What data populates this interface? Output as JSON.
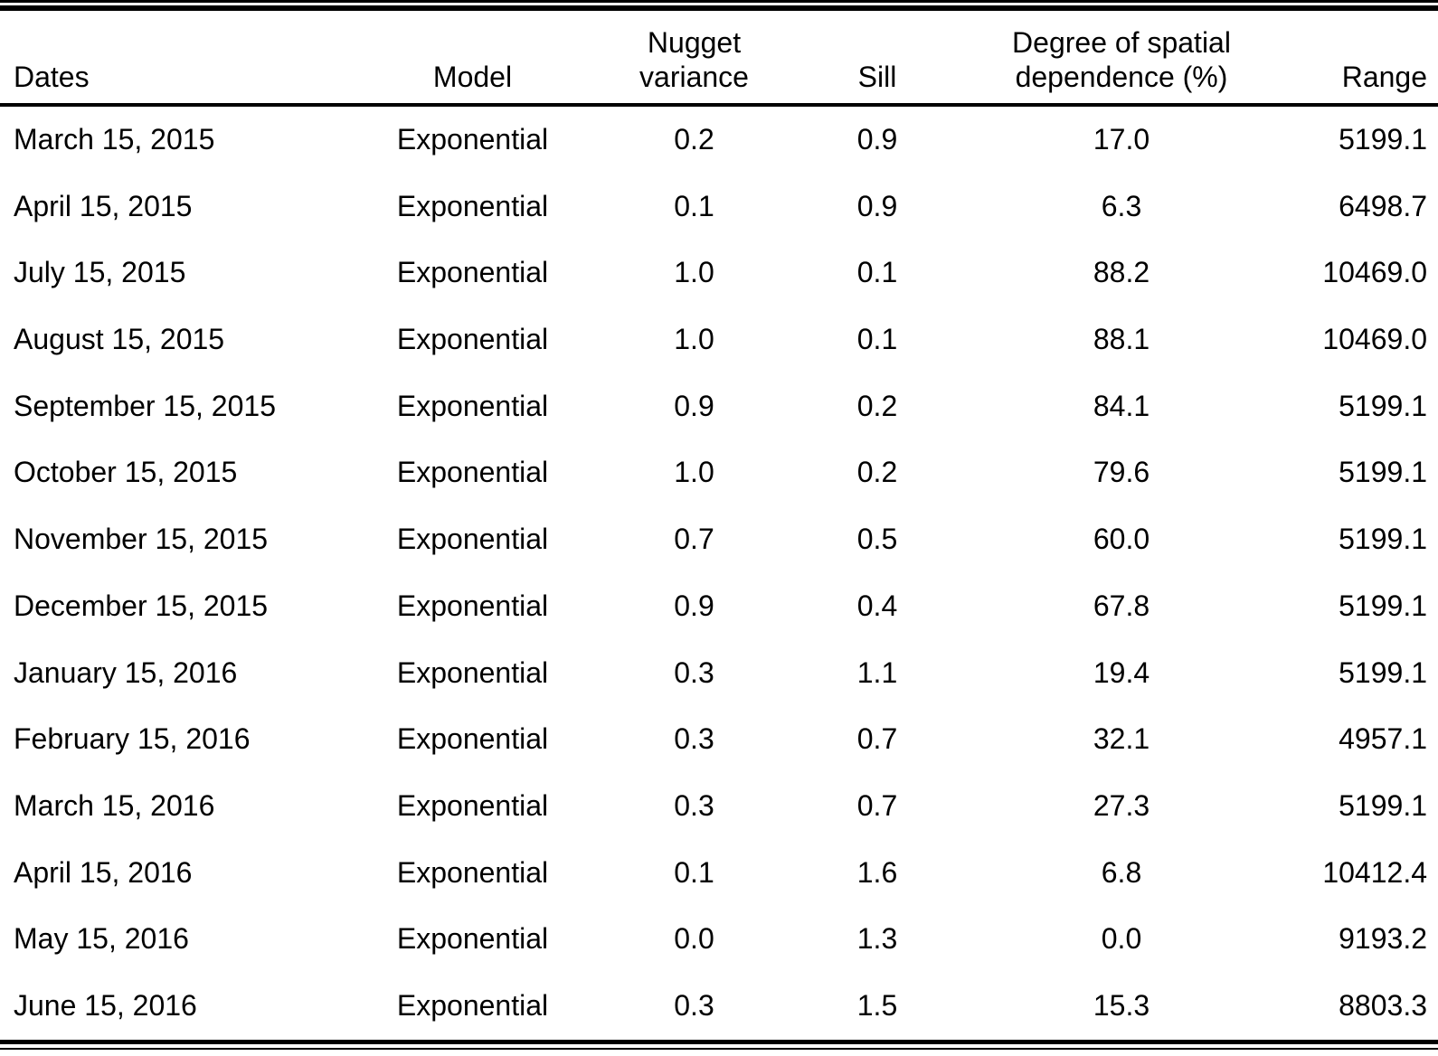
{
  "page": {
    "background_color": "#ffffff",
    "text_color": "#000000"
  },
  "table": {
    "columns": [
      {
        "id": "dates",
        "label": "Dates",
        "align": "left"
      },
      {
        "id": "model",
        "label": "Model",
        "align": "center"
      },
      {
        "id": "nugget_variance",
        "label": "Nugget\nvariance",
        "align": "center"
      },
      {
        "id": "sill",
        "label": "Sill",
        "align": "center"
      },
      {
        "id": "degree",
        "label": "Degree of spatial\ndependence (%)",
        "align": "center"
      },
      {
        "id": "range",
        "label": "Range",
        "align": "right"
      }
    ],
    "rows": [
      {
        "dates": "March 15, 2015",
        "model": "Exponential",
        "nugget_variance": "0.2",
        "sill": "0.9",
        "degree": "17.0",
        "range": "5199.1"
      },
      {
        "dates": "April 15, 2015",
        "model": "Exponential",
        "nugget_variance": "0.1",
        "sill": "0.9",
        "degree": "6.3",
        "range": "6498.7"
      },
      {
        "dates": "July 15, 2015",
        "model": "Exponential",
        "nugget_variance": "1.0",
        "sill": "0.1",
        "degree": "88.2",
        "range": "10469.0"
      },
      {
        "dates": "August 15, 2015",
        "model": "Exponential",
        "nugget_variance": "1.0",
        "sill": "0.1",
        "degree": "88.1",
        "range": "10469.0"
      },
      {
        "dates": "September 15, 2015",
        "model": "Exponential",
        "nugget_variance": "0.9",
        "sill": "0.2",
        "degree": "84.1",
        "range": "5199.1"
      },
      {
        "dates": "October 15, 2015",
        "model": "Exponential",
        "nugget_variance": "1.0",
        "sill": "0.2",
        "degree": "79.6",
        "range": "5199.1"
      },
      {
        "dates": "November 15, 2015",
        "model": "Exponential",
        "nugget_variance": "0.7",
        "sill": "0.5",
        "degree": "60.0",
        "range": "5199.1"
      },
      {
        "dates": "December 15, 2015",
        "model": "Exponential",
        "nugget_variance": "0.9",
        "sill": "0.4",
        "degree": "67.8",
        "range": "5199.1"
      },
      {
        "dates": "January 15, 2016",
        "model": "Exponential",
        "nugget_variance": "0.3",
        "sill": "1.1",
        "degree": "19.4",
        "range": "5199.1"
      },
      {
        "dates": "February 15, 2016",
        "model": "Exponential",
        "nugget_variance": "0.3",
        "sill": "0.7",
        "degree": "32.1",
        "range": "4957.1"
      },
      {
        "dates": "March 15, 2016",
        "model": "Exponential",
        "nugget_variance": "0.3",
        "sill": "0.7",
        "degree": "27.3",
        "range": "5199.1"
      },
      {
        "dates": "April 15, 2016",
        "model": "Exponential",
        "nugget_variance": "0.1",
        "sill": "1.6",
        "degree": "6.8",
        "range": "10412.4"
      },
      {
        "dates": "May 15, 2016",
        "model": "Exponential",
        "nugget_variance": "0.0",
        "sill": "1.3",
        "degree": "0.0",
        "range": "9193.2"
      },
      {
        "dates": "June 15, 2016",
        "model": "Exponential",
        "nugget_variance": "0.3",
        "sill": "1.5",
        "degree": "15.3",
        "range": "8803.3"
      }
    ]
  }
}
